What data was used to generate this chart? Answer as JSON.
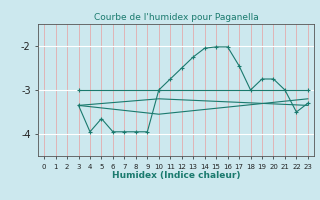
{
  "title": "Courbe de l'humidex pour Paganella",
  "xlabel": "Humidex (Indice chaleur)",
  "bg_color": "#cce8ee",
  "line_color": "#1a7a6e",
  "xlim": [
    -0.5,
    23.5
  ],
  "ylim": [
    -4.5,
    -1.5
  ],
  "yticks": [
    -4,
    -3,
    -2
  ],
  "xticks": [
    0,
    1,
    2,
    3,
    4,
    5,
    6,
    7,
    8,
    9,
    10,
    11,
    12,
    13,
    14,
    15,
    16,
    17,
    18,
    19,
    20,
    21,
    22,
    23
  ],
  "curve1_x": [
    3,
    10,
    23
  ],
  "curve1_y": [
    -3.0,
    -3.0,
    -3.0
  ],
  "curve2_x": [
    3,
    4,
    5,
    6,
    7,
    8,
    9,
    10,
    11,
    12,
    13,
    14,
    15,
    16,
    17,
    18,
    19,
    20,
    21,
    22,
    23
  ],
  "curve2_y": [
    -3.35,
    -3.95,
    -3.65,
    -3.95,
    -3.95,
    -3.95,
    -3.95,
    -3.0,
    -2.75,
    -2.5,
    -2.25,
    -2.05,
    -2.02,
    -2.02,
    -2.45,
    -3.0,
    -2.75,
    -2.75,
    -3.0,
    -3.5,
    -3.3
  ],
  "curve3_x": [
    3,
    10,
    23
  ],
  "curve3_y": [
    -3.35,
    -3.2,
    -3.35
  ],
  "curve4_x": [
    3,
    10,
    23
  ],
  "curve4_y": [
    -3.35,
    -3.55,
    -3.2
  ]
}
